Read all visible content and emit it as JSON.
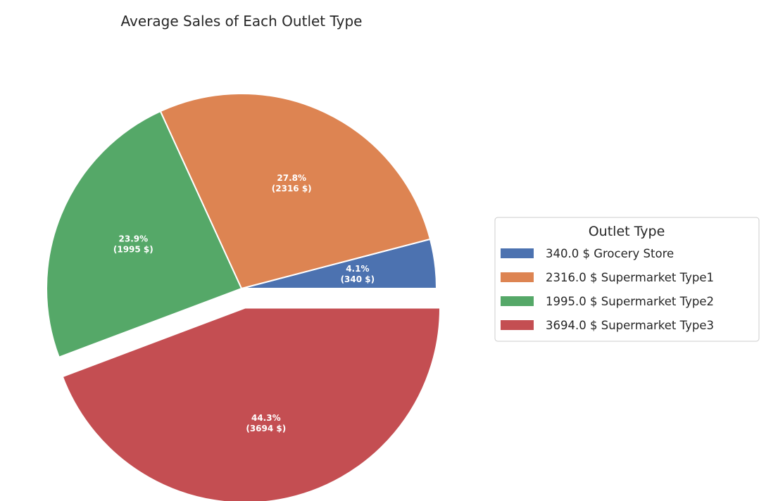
{
  "chart_data": {
    "type": "pie",
    "title": "Average Sales of Each Outlet Type",
    "categories": [
      "Grocery Store",
      "Supermarket Type1",
      "Supermarket Type2",
      "Supermarket Type3"
    ],
    "values": [
      340.0,
      2316.0,
      1995.0,
      3694.0
    ],
    "percent_labels": [
      "4.1%",
      "27.8%",
      "23.9%",
      "44.3%"
    ],
    "value_labels": [
      "(340 $)",
      "(2316 $)",
      "(1995 $)",
      "(3694 $)"
    ],
    "exploded": [
      false,
      false,
      false,
      true
    ],
    "colors": [
      "#4c72b0",
      "#dd8452",
      "#55a868",
      "#c44e52"
    ],
    "legend": {
      "title": "Outlet Type",
      "placement": "center-right",
      "entries": [
        "340.0 $ Grocery Store",
        "2316.0 $ Supermarket Type1",
        "1995.0 $ Supermarket Type2",
        "3694.0 $ Supermarket Type3"
      ]
    }
  }
}
